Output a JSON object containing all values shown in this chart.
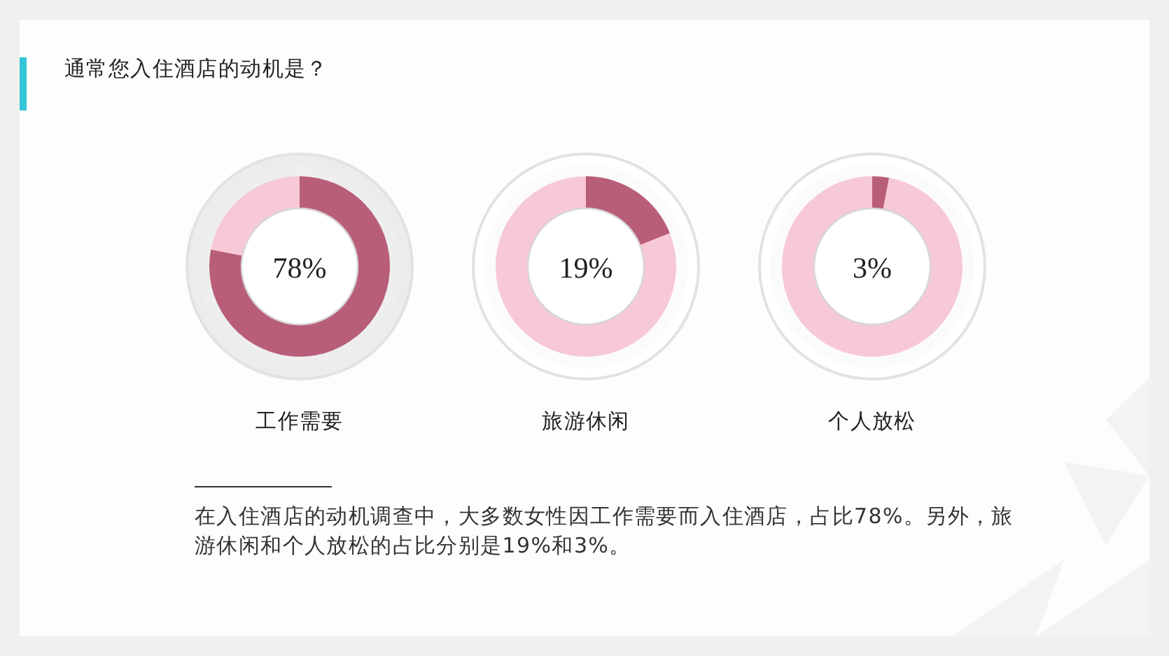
{
  "chart_data": [
    {
      "type": "other",
      "title": "通常您入住酒店的动机是？",
      "annotations": [
        "在入住酒店的动机调查中，大多数女性因工作需要而入住酒店，占比78%。另外，旅游休闲和个人放松的占比分别是19%和3%。"
      ]
    },
    {
      "type": "donut",
      "title": "工作需要",
      "categories": [
        null,
        null
      ],
      "values": [
        78,
        22
      ],
      "colors": [
        "#b95e78",
        "#f7c8d6"
      ],
      "annotations": [
        "78%"
      ]
    },
    {
      "type": "donut",
      "title": "旅游休闲",
      "categories": [
        null,
        null
      ],
      "values": [
        19,
        81
      ],
      "colors": [
        "#b95e78",
        "#f7c8d6"
      ],
      "annotations": [
        "19%"
      ]
    },
    {
      "type": "donut",
      "title": "个人放松",
      "categories": [
        null,
        null
      ],
      "values": [
        3,
        97
      ],
      "colors": [
        "#b95e78",
        "#f7c8d6"
      ],
      "annotations": [
        "3%"
      ]
    }
  ]
}
